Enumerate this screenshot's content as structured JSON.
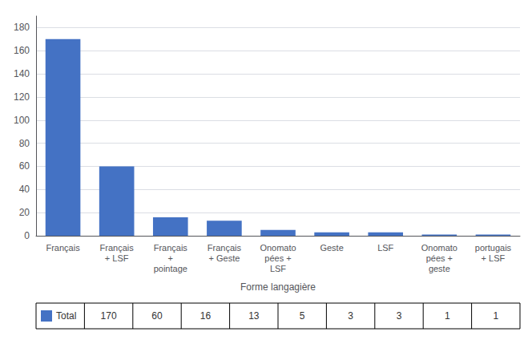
{
  "chart_data": {
    "type": "bar",
    "xlabel": "Forme langagière",
    "categories": [
      "Français",
      "Français\n+ LSF",
      "Français\n+\npointage",
      "Français\n+ Geste",
      "Onomato\npées +\nLSF",
      "Geste",
      "LSF",
      "Onomato\npées +\ngeste",
      "portugais\n+ LSF"
    ],
    "series": [
      {
        "name": "Total",
        "color": "#4472C4",
        "values": [
          170,
          60,
          16,
          13,
          5,
          3,
          3,
          1,
          1
        ]
      }
    ],
    "ylim": [
      0,
      190
    ],
    "yticks": [
      0,
      20,
      40,
      60,
      80,
      100,
      120,
      140,
      160,
      180
    ],
    "grid": true
  }
}
